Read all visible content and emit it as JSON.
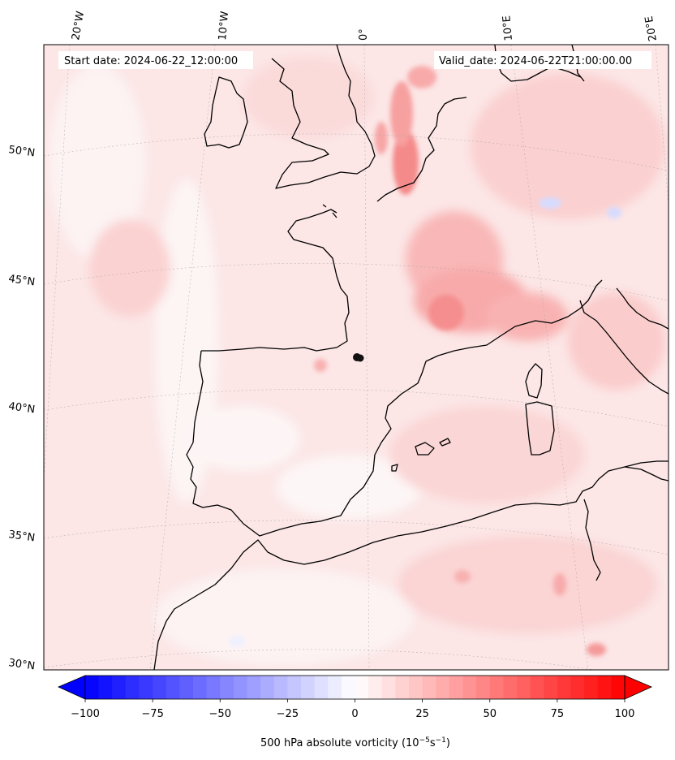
{
  "header": {
    "start_date": "Start date: 2024-06-22_12:00:00",
    "valid_date": "Valid_date: 2024-06-22T21:00:00.00"
  },
  "map": {
    "lon_labels": [
      "20°W",
      "10°W",
      "0°",
      "10°E",
      "20°E"
    ],
    "lat_labels": [
      "50°N",
      "45°N",
      "40°N",
      "35°N",
      "30°N"
    ],
    "gridlines": true,
    "coastline_color": "#000000",
    "field_base_color": "#fde2e2"
  },
  "colorbar": {
    "ticks": [
      "−100",
      "−75",
      "−50",
      "−25",
      "0",
      "25",
      "50",
      "75",
      "100"
    ],
    "label": "500 hPa absolute vorticity (10",
    "label_exp1": "−5",
    "label_mid": "s",
    "label_exp2": "−1",
    "label_end": ")",
    "min_color": "#0000ff",
    "mid_color": "#ffffff",
    "max_color": "#ff0000",
    "extend": "both"
  }
}
